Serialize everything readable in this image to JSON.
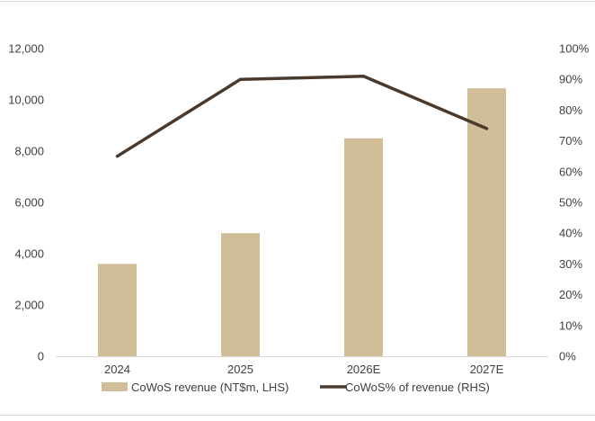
{
  "chart_data": {
    "type": "bar+line",
    "categories": [
      "2024",
      "2025",
      "2026E",
      "2027E"
    ],
    "series": [
      {
        "name": "CoWoS revenue (NT$m, LHS)",
        "type": "bar",
        "axis": "left",
        "values": [
          3600,
          4800,
          8500,
          10450
        ]
      },
      {
        "name": "CoWoS% of revenue (RHS)",
        "type": "line",
        "axis": "right",
        "values": [
          65,
          90,
          91,
          74
        ]
      }
    ],
    "left_axis": {
      "ylim": [
        0,
        12000
      ],
      "ticks": [
        "0",
        "2,000",
        "4,000",
        "6,000",
        "8,000",
        "10,000",
        "12,000"
      ]
    },
    "right_axis": {
      "ylim": [
        0,
        100
      ],
      "ticks": [
        "0%",
        "10%",
        "20%",
        "30%",
        "40%",
        "50%",
        "60%",
        "70%",
        "80%",
        "90%",
        "100%"
      ]
    },
    "grid": false,
    "legend": "bottom"
  },
  "colors": {
    "bar": "#D1BE99",
    "line": "#4A3A2E",
    "text": "#404040",
    "frame": "#D9D9D9"
  }
}
